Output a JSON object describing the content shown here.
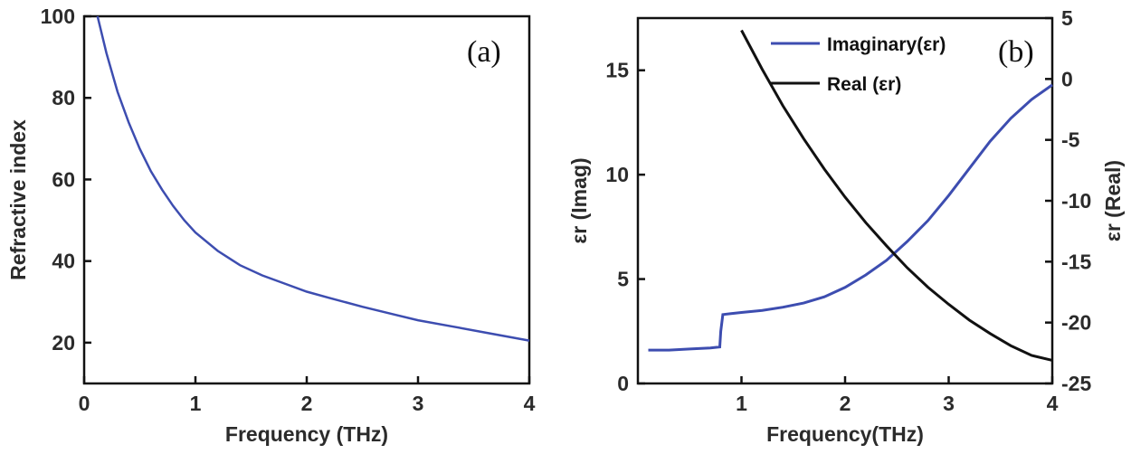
{
  "colors": {
    "imaginary": "#3d4db0",
    "real": "#111111",
    "axis": "#111111",
    "curve_a": "#3d4db0"
  },
  "chart_data": [
    {
      "type": "line",
      "panel_label": "(a)",
      "xlabel": "Frequency (THz)",
      "ylabel": "Refractive index",
      "xlim": [
        0,
        4
      ],
      "ylim": [
        10,
        100
      ],
      "xticks": [
        0,
        1,
        2,
        3,
        4
      ],
      "yticks": [
        20,
        40,
        60,
        80,
        100
      ],
      "xtick_labels": [
        "0",
        "1",
        "2",
        "3",
        "4"
      ],
      "ytick_labels": [
        "20",
        "40",
        "60",
        "80",
        "100"
      ],
      "series": [
        {
          "name": "Refractive index",
          "x": [
            0.12,
            0.2,
            0.3,
            0.4,
            0.5,
            0.6,
            0.7,
            0.8,
            0.9,
            1.0,
            1.2,
            1.4,
            1.6,
            1.8,
            2.0,
            2.2,
            2.5,
            2.8,
            3.0,
            3.3,
            3.6,
            4.0
          ],
          "y": [
            100,
            91,
            81.5,
            74,
            67.5,
            62,
            57.5,
            53.5,
            50,
            47,
            42.5,
            39,
            36.5,
            34.5,
            32.5,
            31,
            28.8,
            26.8,
            25.5,
            24,
            22.5,
            20.5
          ]
        }
      ]
    },
    {
      "type": "line",
      "panel_label": "(b)",
      "xlabel": "Frequency(THz)",
      "ylabel_left": "εr (Imag)",
      "ylabel_right": "εr (Real)",
      "xlim": [
        0,
        4
      ],
      "ylim_left": [
        0,
        17.5
      ],
      "ylim_right": [
        -25,
        5
      ],
      "xticks": [
        1,
        2,
        3,
        4
      ],
      "xtick_labels": [
        "1",
        "2",
        "3",
        "4"
      ],
      "yticks_left": [
        0,
        5,
        10,
        15
      ],
      "ytick_labels_left": [
        "0",
        "5",
        "10",
        "15"
      ],
      "yticks_right": [
        5,
        0,
        -5,
        -10,
        -15,
        -20,
        -25
      ],
      "ytick_labels_right": [
        "5",
        "0",
        "-5",
        "-10",
        "-15",
        "-20",
        "-25"
      ],
      "legend": {
        "position": "top-center",
        "entries": [
          {
            "label": "Imaginary(εr)",
            "series": "imaginary"
          },
          {
            "label": "Real (εr)",
            "series": "real"
          }
        ]
      },
      "series": [
        {
          "name": "Imaginary(εr)",
          "key": "imaginary",
          "axis": "left",
          "x": [
            0.1,
            0.3,
            0.5,
            0.7,
            0.79,
            0.8,
            0.82,
            0.9,
            1.0,
            1.2,
            1.4,
            1.6,
            1.8,
            2.0,
            2.2,
            2.4,
            2.6,
            2.8,
            3.0,
            3.2,
            3.4,
            3.6,
            3.8,
            4.0
          ],
          "y": [
            1.6,
            1.6,
            1.65,
            1.7,
            1.75,
            2.5,
            3.3,
            3.35,
            3.4,
            3.5,
            3.65,
            3.85,
            4.15,
            4.6,
            5.2,
            5.9,
            6.8,
            7.8,
            9.0,
            10.3,
            11.6,
            12.7,
            13.6,
            14.3
          ]
        },
        {
          "name": "Real (εr)",
          "key": "real",
          "axis": "right",
          "x": [
            1.0,
            1.2,
            1.4,
            1.6,
            1.8,
            2.0,
            2.2,
            2.4,
            2.6,
            2.8,
            3.0,
            3.2,
            3.4,
            3.6,
            3.8,
            4.0
          ],
          "y": [
            4,
            0.8,
            -2.2,
            -4.9,
            -7.4,
            -9.7,
            -11.8,
            -13.7,
            -15.5,
            -17.1,
            -18.5,
            -19.8,
            -20.9,
            -21.9,
            -22.7,
            -23.1
          ]
        }
      ]
    }
  ]
}
